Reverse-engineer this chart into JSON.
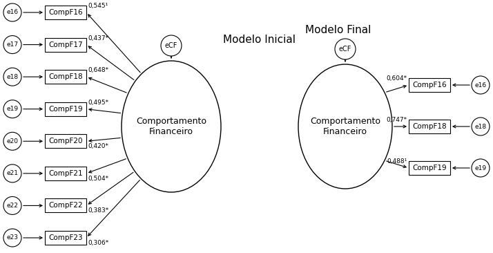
{
  "title": "Modelo Inicial",
  "title2": "Modelo Final",
  "bg_color": "#ffffff",
  "initial_items": [
    {
      "label": "CompF16",
      "error": "e16",
      "coef": "0,545¹"
    },
    {
      "label": "CompF17",
      "error": "e17",
      "coef": "0,437*"
    },
    {
      "label": "CompF18",
      "error": "e18",
      "coef": "0,648*"
    },
    {
      "label": "CompF19",
      "error": "e19",
      "coef": "0,495*"
    },
    {
      "label": "CompF20",
      "error": "e20",
      "coef": "0,420*"
    },
    {
      "label": "CompF21",
      "error": "e21",
      "coef": "0,504*"
    },
    {
      "label": "CompF22",
      "error": "e22",
      "coef": "0,383*"
    },
    {
      "label": "CompF23",
      "error": "e23",
      "coef": "0,306*"
    }
  ],
  "final_items": [
    {
      "label": "CompF16",
      "error": "e16",
      "coef": "0,604*"
    },
    {
      "label": "CompF18",
      "error": "e18",
      "coef": "0,747*"
    },
    {
      "label": "CompF19",
      "error": "e19",
      "coef": "0,488¹"
    }
  ],
  "construct_label": "Comportamento\nFinanceiro",
  "ecf_label": "eCF",
  "font_size_title": 11,
  "font_size_label": 7.5,
  "font_size_coef": 6.5,
  "font_size_node": 7,
  "font_size_construct": 8
}
